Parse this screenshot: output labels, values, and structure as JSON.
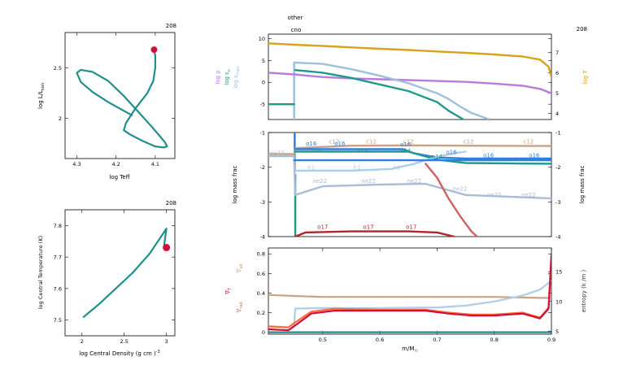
{
  "chart_data": [
    {
      "type": "line",
      "panel": "hr",
      "corner_label": "208",
      "xlabel": "log Teff",
      "ylabel": "log L/L",
      "ylabel_sub": "sun",
      "xlim": [
        4.33,
        4.05
      ],
      "ylim": [
        1.6,
        2.85
      ],
      "x_ticks": [
        "4.3",
        "4.2",
        "4.1"
      ],
      "x_tick_values": [
        4.3,
        4.2,
        4.1
      ],
      "y_ticks": [
        "2.5",
        "2"
      ],
      "y_tick_values": [
        2.5,
        2.0
      ],
      "series": [
        {
          "color": "#1f8f8c",
          "points": [
            [
              4.16,
              2.03
            ],
            [
              4.22,
              2.16
            ],
            [
              4.26,
              2.26
            ],
            [
              4.29,
              2.36
            ],
            [
              4.3,
              2.45
            ],
            [
              4.29,
              2.48
            ],
            [
              4.26,
              2.46
            ],
            [
              4.22,
              2.37
            ],
            [
              4.18,
              2.22
            ],
            [
              4.14,
              2.05
            ],
            [
              4.11,
              1.92
            ],
            [
              4.09,
              1.83
            ],
            [
              4.075,
              1.76
            ],
            [
              4.07,
              1.72
            ],
            [
              4.078,
              1.71
            ],
            [
              4.1,
              1.72
            ],
            [
              4.135,
              1.78
            ],
            [
              4.165,
              1.84
            ],
            [
              4.18,
              1.88
            ],
            [
              4.175,
              1.95
            ],
            [
              4.15,
              2.1
            ],
            [
              4.12,
              2.25
            ],
            [
              4.105,
              2.37
            ],
            [
              4.1,
              2.5
            ],
            [
              4.1,
              2.62
            ],
            [
              4.103,
              2.68
            ]
          ]
        }
      ],
      "marker": {
        "x": 4.103,
        "y": 2.68,
        "color": "#d0103a"
      }
    },
    {
      "type": "line",
      "panel": "center",
      "corner_label": "208",
      "xlabel": "log Central Density (g cm )",
      "xlabel_sup": "-3",
      "ylabel": "log Central Temperature (K)",
      "xlim": [
        1.8,
        3.1
      ],
      "ylim": [
        7.45,
        7.85
      ],
      "x_ticks": [
        "2",
        "2.5",
        "3"
      ],
      "x_tick_values": [
        2.0,
        2.5,
        3.0
      ],
      "y_ticks": [
        "7.8",
        "7.7",
        "7.6",
        "7.5"
      ],
      "y_tick_values": [
        7.8,
        7.7,
        7.6,
        7.5
      ],
      "series": [
        {
          "color": "#1f8f8c",
          "points": [
            [
              2.02,
              7.51
            ],
            [
              2.2,
              7.55
            ],
            [
              2.4,
              7.6
            ],
            [
              2.6,
              7.65
            ],
            [
              2.8,
              7.71
            ],
            [
              2.95,
              7.77
            ],
            [
              3.0,
              7.79
            ],
            [
              2.98,
              7.75
            ],
            [
              2.97,
              7.73
            ],
            [
              3.0,
              7.73
            ]
          ]
        }
      ],
      "marker": {
        "x": 3.0,
        "y": 7.73,
        "color": "#d0103a"
      }
    },
    {
      "type": "line",
      "panel": "profile-top",
      "corner_label": "208",
      "top_labels": [
        "other",
        "cno"
      ],
      "xlim": [
        0.405,
        0.9
      ],
      "ylim_left": [
        -8.5,
        11
      ],
      "ylim_right": [
        3.7,
        7.9
      ],
      "y_ticks_left": [
        "10",
        "5",
        "0",
        "-5"
      ],
      "y_tick_values_left": [
        10,
        5,
        0,
        -5
      ],
      "y_ticks_right": [
        "7",
        "6",
        "5",
        "4"
      ],
      "y_tick_values_right": [
        7,
        6,
        5,
        4
      ],
      "ylabel_left": [
        {
          "text": "log ρ",
          "color": "#b77be0"
        },
        {
          "text": "log ε",
          "sub": "ν",
          "color": "#1f9a8a"
        },
        {
          "text": "log ε",
          "sub": "max",
          "color": "#9ec0da"
        }
      ],
      "ylabel_right": {
        "text": "log T",
        "color": "#d9a21c"
      },
      "series": [
        {
          "axis": "right",
          "color": "#d9a21c",
          "x": [
            0.405,
            0.45,
            0.5,
            0.55,
            0.6,
            0.65,
            0.7,
            0.75,
            0.8,
            0.85,
            0.88,
            0.895,
            0.9
          ],
          "y": [
            7.45,
            7.38,
            7.32,
            7.25,
            7.18,
            7.12,
            7.05,
            6.98,
            6.9,
            6.8,
            6.65,
            6.3,
            5.8
          ]
        },
        {
          "axis": "left",
          "color": "#b77be0",
          "x": [
            0.405,
            0.45,
            0.5,
            0.55,
            0.6,
            0.65,
            0.7,
            0.75,
            0.8,
            0.85,
            0.88,
            0.9
          ],
          "y": [
            2.2,
            1.8,
            1.2,
            0.9,
            0.7,
            0.5,
            0.3,
            0.1,
            -0.3,
            -0.8,
            -1.5,
            -2.5
          ]
        },
        {
          "axis": "left",
          "color": "#9ec0da",
          "x": [
            0.45,
            0.452,
            0.5,
            0.55,
            0.6,
            0.65,
            0.7,
            0.72,
            0.74,
            0.76,
            0.79
          ],
          "y": [
            4.5,
            4.5,
            4.2,
            3.0,
            1.5,
            -0.2,
            -2.5,
            -3.8,
            -5.5,
            -7.0,
            -8.4
          ]
        },
        {
          "axis": "left",
          "color": "#1f9a8a",
          "x": [
            0.452,
            0.5,
            0.55,
            0.6,
            0.65,
            0.7,
            0.72,
            0.745
          ],
          "y": [
            2.8,
            2.2,
            1.0,
            -0.5,
            -2.0,
            -4.5,
            -6.5,
            -8.4
          ]
        },
        {
          "axis": "left",
          "color": "#1f9a8a",
          "x": [
            0.405,
            0.45
          ],
          "y": [
            -5.0,
            -5.0
          ]
        }
      ],
      "vertical_line": {
        "x": 0.45,
        "color": "#9ec0da"
      }
    },
    {
      "type": "line",
      "panel": "profile-middle",
      "xlim": [
        0.405,
        0.9
      ],
      "ylim": [
        -4,
        -1
      ],
      "y_ticks": [
        "-1",
        "-2",
        "-3",
        "-4"
      ],
      "y_tick_values": [
        -1,
        -2,
        -3,
        -4
      ],
      "ylabel_left": "log mass frac",
      "ylabel_right": "log mass frac",
      "series": [
        {
          "name": "c12",
          "color": "#c8a282",
          "x": [
            0.405,
            0.45,
            0.452,
            0.55,
            0.65,
            0.75,
            0.9
          ],
          "y": [
            -1.62,
            -1.62,
            -1.45,
            -1.38,
            -1.37,
            -1.38,
            -1.39
          ],
          "labels": [
            [
              0.52,
              -1.32
            ],
            [
              0.585,
              -1.32
            ],
            [
              0.65,
              -1.32
            ],
            [
              0.755,
              -1.32
            ],
            [
              0.86,
              -1.32
            ]
          ]
        },
        {
          "name": "o16",
          "color": "#2f7fe0",
          "x": [
            0.452,
            0.55,
            0.64,
            0.66,
            0.7,
            0.75,
            0.9
          ],
          "y": [
            -1.48,
            -1.48,
            -1.48,
            -1.6,
            -1.72,
            -1.75,
            -1.75
          ],
          "labels": [
            [
              0.48,
              -1.38
            ],
            [
              0.53,
              -1.38
            ],
            [
              0.645,
              -1.4
            ],
            [
              0.725,
              -1.62
            ],
            [
              0.79,
              -1.72
            ],
            [
              0.87,
              -1.72
            ]
          ]
        },
        {
          "name": "n14",
          "color": "#1f9a8a",
          "x": [
            0.452,
            0.55,
            0.65,
            0.7,
            0.75,
            0.9
          ],
          "y": [
            -1.55,
            -1.55,
            -1.55,
            -1.78,
            -1.88,
            -1.9
          ],
          "labels": [
            [
              0.49,
              -1.58
            ],
            [
              0.57,
              -1.58
            ],
            [
              0.645,
              -1.58
            ],
            [
              0.7,
              -1.75
            ]
          ]
        },
        {
          "name": "h1",
          "color": "#aecde8",
          "x": [
            0.452,
            0.55,
            0.62,
            0.66,
            0.7,
            0.73,
            0.75
          ],
          "y": [
            -2.1,
            -2.1,
            -2.05,
            -1.9,
            -1.7,
            -1.6,
            -1.55
          ],
          "labels": [
            [
              0.48,
              -2.07
            ],
            [
              0.56,
              -2.07
            ],
            [
              0.63,
              -2.07
            ]
          ]
        },
        {
          "name": "ne22",
          "color": "#a9bcd8",
          "x": [
            0.405,
            0.45,
            0.452,
            0.5,
            0.6,
            0.68,
            0.75,
            0.9
          ],
          "y": [
            -1.68,
            -1.68,
            -2.8,
            -2.55,
            -2.5,
            -2.48,
            -2.8,
            -2.9
          ],
          "labels": [
            [
              0.42,
              -1.64
            ],
            [
              0.495,
              -2.45
            ],
            [
              0.58,
              -2.45
            ],
            [
              0.66,
              -2.45
            ],
            [
              0.74,
              -2.68
            ],
            [
              0.8,
              -2.85
            ],
            [
              0.86,
              -2.85
            ]
          ]
        },
        {
          "name": "o17",
          "color": "#b0262a",
          "x": [
            0.452,
            0.47,
            0.55,
            0.65,
            0.7,
            0.73
          ],
          "y": [
            -4.0,
            -3.88,
            -3.85,
            -3.85,
            -3.88,
            -4.0
          ],
          "labels": [
            [
              0.5,
              -3.78
            ],
            [
              0.58,
              -3.78
            ],
            [
              0.655,
              -3.78
            ]
          ]
        }
      ],
      "extra_lines": [
        {
          "color": "#2f7fe0",
          "x": [
            0.45,
            0.9
          ],
          "y": [
            -1.8,
            -1.8
          ]
        },
        {
          "color": "#d06060",
          "x": [
            0.68,
            0.7,
            0.72,
            0.74,
            0.76,
            0.77
          ],
          "y": [
            -1.9,
            -2.3,
            -2.9,
            -3.4,
            -3.85,
            -4.0
          ]
        }
      ],
      "vertical_lines": [
        {
          "x": 0.451,
          "color": "#2f7fe0",
          "y": [
            -1,
            -2.1
          ]
        },
        {
          "x": 0.452,
          "color": "#1f9a8a",
          "y": [
            -2.2,
            -4
          ]
        }
      ]
    },
    {
      "type": "line",
      "panel": "profile-bottom",
      "xlabel": "m/M",
      "xlabel_sub": "☉",
      "xlim": [
        0.405,
        0.9
      ],
      "x_ticks": [
        "0.5",
        "0.6",
        "0.7",
        "0.8",
        "0.9"
      ],
      "x_tick_values": [
        0.5,
        0.6,
        0.7,
        0.8,
        0.9
      ],
      "ylim_left": [
        -0.02,
        0.86
      ],
      "ylim_right": [
        4.5,
        19
      ],
      "y_ticks_left": [
        "0.8",
        "0.6",
        "0.4",
        "0.2",
        "0"
      ],
      "y_tick_values_left": [
        0.8,
        0.6,
        0.4,
        0.2,
        0.0
      ],
      "y_ticks_right": [
        "15",
        "10",
        "5"
      ],
      "y_tick_values_right": [
        15,
        10,
        5
      ],
      "ylabel_left": [
        {
          "text": "∇",
          "sub": "ad",
          "color": "#c8a282"
        },
        {
          "text": "∇",
          "sub": "T",
          "color": "#d0103a"
        },
        {
          "text": "∇",
          "sub": "rad",
          "color": "#ff6a3a"
        }
      ],
      "ylabel_right": {
        "text": "entropy (k /m )",
        "color": "#333333"
      },
      "series": [
        {
          "name": "nabla_ad",
          "axis": "left",
          "color": "#c8a282",
          "x": [
            0.405,
            0.45,
            0.5,
            0.6,
            0.7,
            0.8,
            0.88,
            0.9
          ],
          "y": [
            0.38,
            0.37,
            0.36,
            0.36,
            0.36,
            0.36,
            0.35,
            0.35
          ]
        },
        {
          "name": "entropy",
          "axis": "right",
          "color": "#aecde8",
          "x": [
            0.45,
            0.452,
            0.5,
            0.6,
            0.7,
            0.75,
            0.8,
            0.85,
            0.88,
            0.9
          ],
          "y": [
            5.8,
            8.8,
            8.9,
            8.9,
            9.0,
            9.3,
            10.0,
            11.0,
            12.0,
            13.5
          ]
        },
        {
          "name": "nabla_rad",
          "axis": "left",
          "color": "#ff6a3a",
          "x": [
            0.405,
            0.44,
            0.452,
            0.48,
            0.52,
            0.6,
            0.68,
            0.72,
            0.76,
            0.8,
            0.85,
            0.88,
            0.895,
            0.9
          ],
          "y": [
            0.06,
            0.05,
            0.1,
            0.21,
            0.24,
            0.23,
            0.23,
            0.2,
            0.18,
            0.18,
            0.2,
            0.15,
            0.25,
            0.75
          ]
        },
        {
          "name": "nabla_T",
          "axis": "left",
          "color": "#d0103a",
          "x": [
            0.405,
            0.44,
            0.452,
            0.48,
            0.52,
            0.6,
            0.68,
            0.72,
            0.76,
            0.8,
            0.85,
            0.88,
            0.895,
            0.9
          ],
          "y": [
            0.03,
            0.02,
            0.07,
            0.19,
            0.22,
            0.22,
            0.22,
            0.19,
            0.17,
            0.17,
            0.19,
            0.14,
            0.24,
            0.8
          ]
        },
        {
          "name": "baseline",
          "axis": "left",
          "color": "#1f8f8c",
          "x": [
            0.405,
            0.9
          ],
          "y": [
            0.0,
            0.0
          ]
        }
      ]
    }
  ]
}
